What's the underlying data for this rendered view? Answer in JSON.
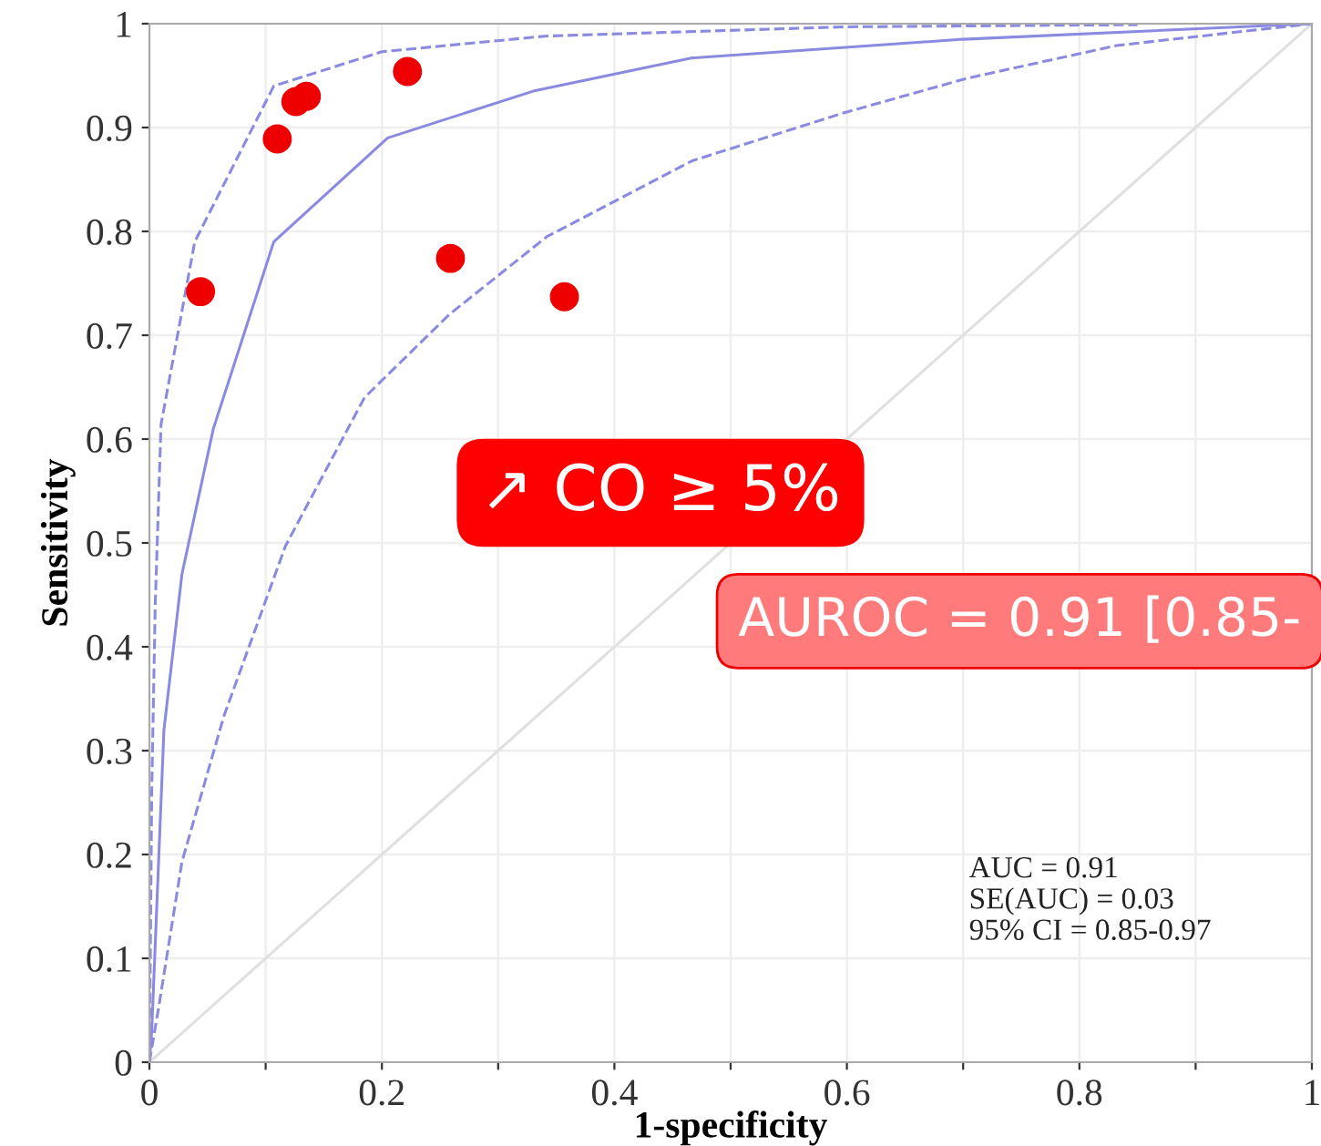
{
  "chart_data": {
    "type": "line",
    "xlabel": "1-specificity",
    "ylabel": "Sensitivity",
    "xlim": [
      0,
      1
    ],
    "ylim": [
      0,
      1
    ],
    "xticks": [
      0,
      {
        "value": 0.1,
        "label": null
      },
      0.2,
      {
        "value": 0.3,
        "label": null
      },
      0.4,
      {
        "value": 0.5,
        "label": null
      },
      0.6,
      {
        "value": 0.7,
        "label": null
      },
      0.8,
      {
        "value": 0.9,
        "label": null
      },
      1
    ],
    "yticks": [
      0,
      0.1,
      0.2,
      0.3,
      0.4,
      0.5,
      0.6,
      0.7,
      0.8,
      0.9,
      1
    ],
    "grid": true,
    "legend": false,
    "series": [
      {
        "color": "#e0e0e0",
        "line_style": "solid",
        "marker": "none",
        "x": [
          0,
          1
        ],
        "values": [
          0,
          1
        ]
      },
      {
        "color": "#8a8ae0",
        "line_style": "solid",
        "marker": "none",
        "x": [
          0,
          0.002,
          0.0125,
          0.028,
          0.055,
          0.107,
          0.205,
          0.33,
          0.467,
          0.7,
          1
        ],
        "values": [
          0,
          0.03,
          0.32,
          0.47,
          0.61,
          0.79,
          0.89,
          0.935,
          0.967,
          0.985,
          1
        ]
      },
      {
        "color": "#8a8ae0",
        "line_style": "dashed",
        "marker": "none",
        "x": [
          0,
          0.002,
          0.005,
          0.01,
          0.039,
          0.107,
          0.2,
          0.34,
          0.6,
          0.85
        ],
        "values": [
          0,
          0.26,
          0.44,
          0.614,
          0.79,
          0.94,
          0.973,
          0.988,
          0.997,
          0.999
        ]
      },
      {
        "color": "#8a8ae0",
        "line_style": "dashed",
        "marker": "none",
        "x": [
          0,
          0.008,
          0.028,
          0.064,
          0.117,
          0.185,
          0.258,
          0.342,
          0.467,
          0.597,
          0.702,
          0.832,
          1
        ],
        "values": [
          0,
          0.053,
          0.193,
          0.333,
          0.497,
          0.64,
          0.72,
          0.795,
          0.868,
          0.914,
          0.947,
          0.979,
          1
        ]
      },
      {
        "type": "scatter",
        "color": "#ee0000",
        "marker": "circle",
        "x": [
          0.044,
          0.11,
          0.126,
          0.135,
          0.222,
          0.259,
          0.357
        ],
        "values": [
          0.742,
          0.889,
          0.925,
          0.93,
          0.954,
          0.774,
          0.737
        ]
      }
    ],
    "annotations": [
      "↗ CO ≥ 5%",
      "AUROC = 0.91 [0.85-",
      "AUC = 0.91",
      "SE(AUC) = 0.03",
      "95% CI = 0.85-0.97"
    ]
  }
}
